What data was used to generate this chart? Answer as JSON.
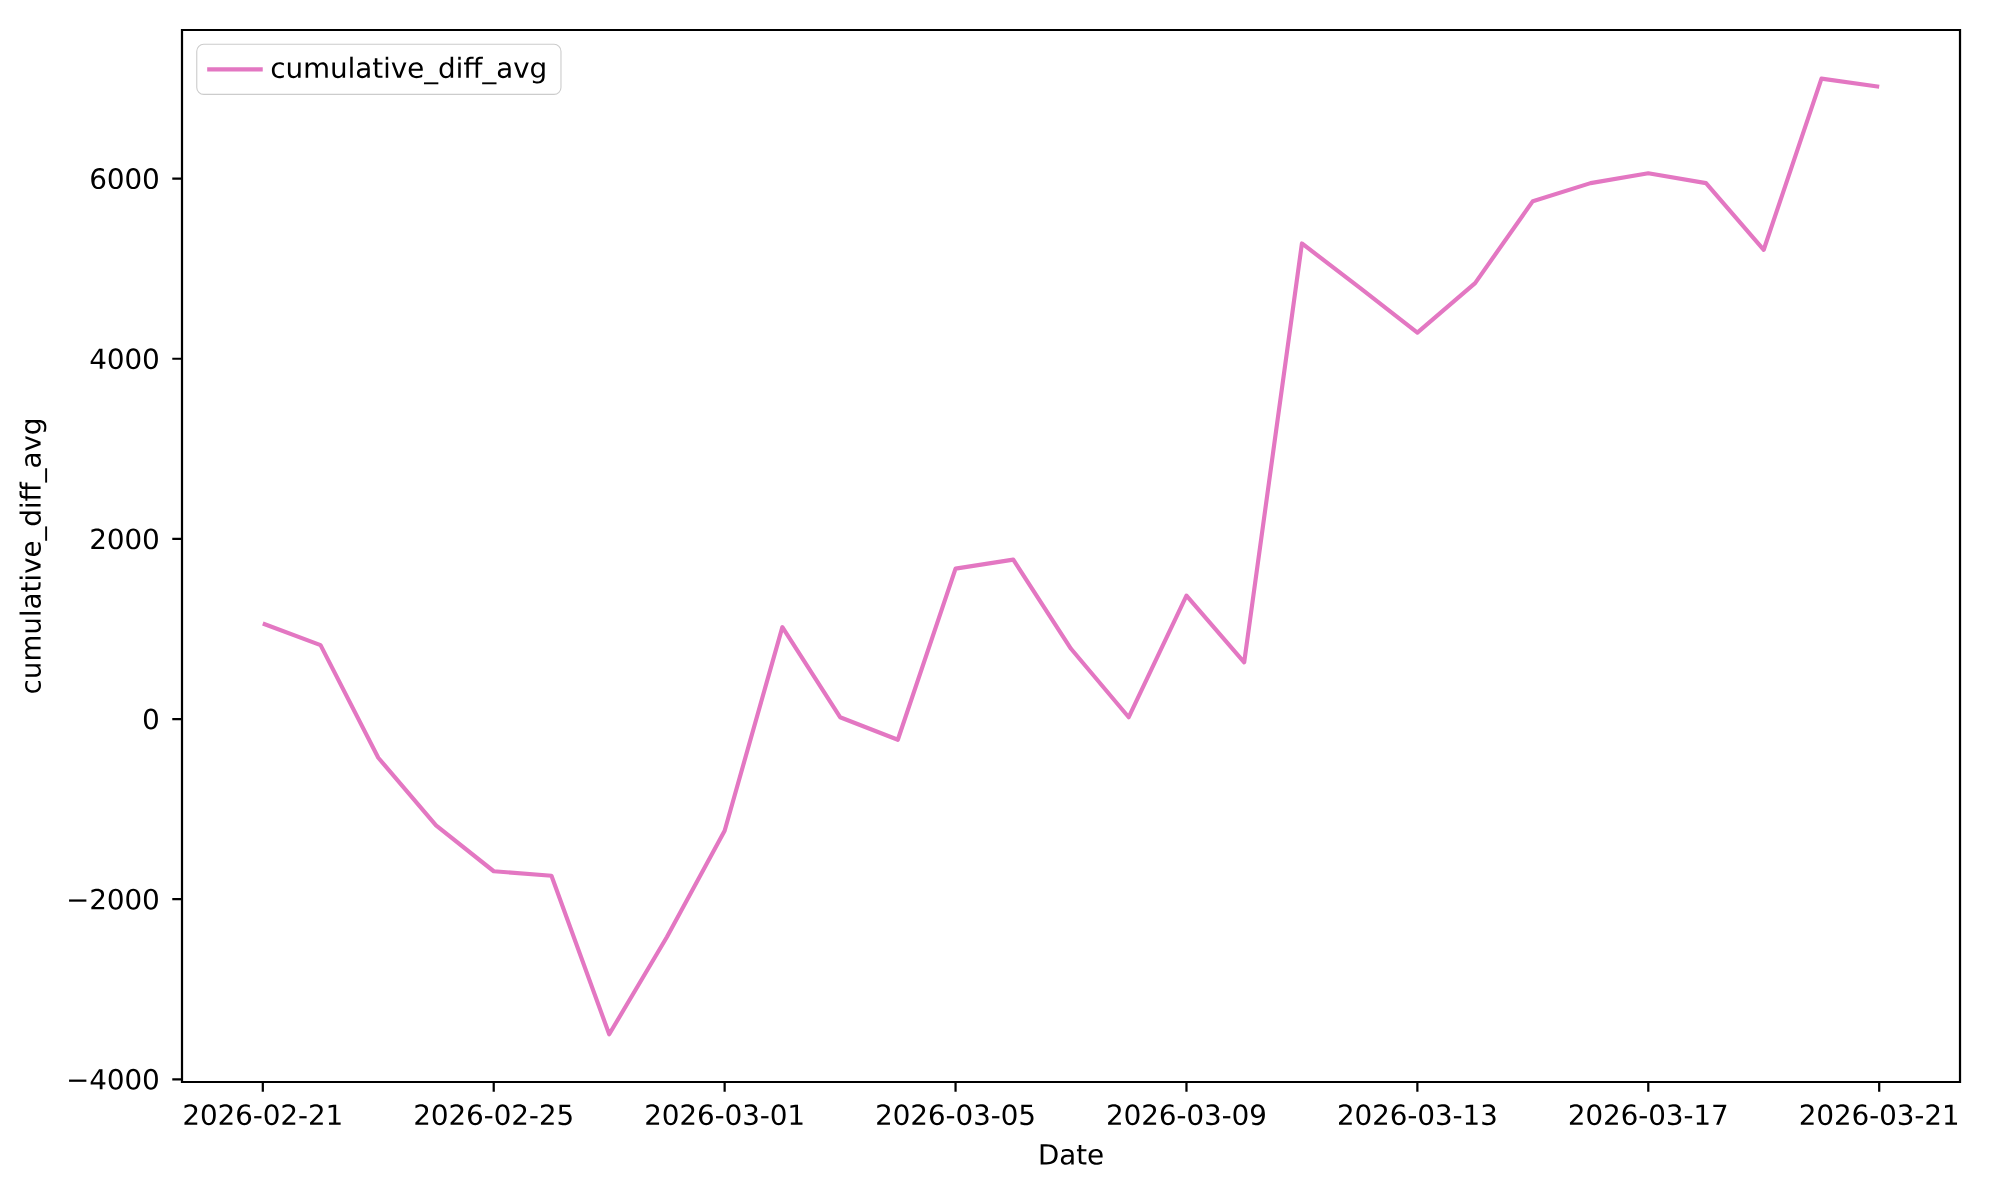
{
  "chart_data": {
    "type": "line",
    "xlabel": "Date",
    "ylabel": "cumulative_diff_avg",
    "x": [
      "2026-02-21",
      "2026-02-22",
      "2026-02-23",
      "2026-02-24",
      "2026-02-25",
      "2026-02-26",
      "2026-02-27",
      "2026-02-28",
      "2026-03-01",
      "2026-03-02",
      "2026-03-03",
      "2026-03-04",
      "2026-03-05",
      "2026-03-06",
      "2026-03-07",
      "2026-03-08",
      "2026-03-09",
      "2026-03-10",
      "2026-03-11",
      "2026-03-12",
      "2026-03-13",
      "2026-03-14",
      "2026-03-15",
      "2026-03-16",
      "2026-03-17",
      "2026-03-18",
      "2026-03-19",
      "2026-03-20",
      "2026-03-21"
    ],
    "series": [
      {
        "name": "cumulative_diff_avg",
        "color": "#e377c2",
        "values": [
          1060,
          820,
          -430,
          -1180,
          -1690,
          -1740,
          -3500,
          -2420,
          -1240,
          1020,
          20,
          -230,
          1670,
          1770,
          780,
          20,
          1370,
          630,
          5280,
          4790,
          4290,
          4840,
          5750,
          5950,
          6060,
          5950,
          5210,
          7110,
          7020
        ]
      }
    ],
    "xlim": [
      "2026-02-19T14:24",
      "2026-03-22T09:36"
    ],
    "ylim": [
      -4030,
      7650
    ],
    "xticks": [
      "2026-02-21",
      "2026-02-25",
      "2026-03-01",
      "2026-03-05",
      "2026-03-09",
      "2026-03-13",
      "2026-03-17",
      "2026-03-21"
    ],
    "yticks": [
      {
        "value": -4000,
        "label": "−4000"
      },
      {
        "value": -2000,
        "label": "−2000"
      },
      0,
      2000,
      4000,
      6000
    ],
    "legend": "top left"
  }
}
